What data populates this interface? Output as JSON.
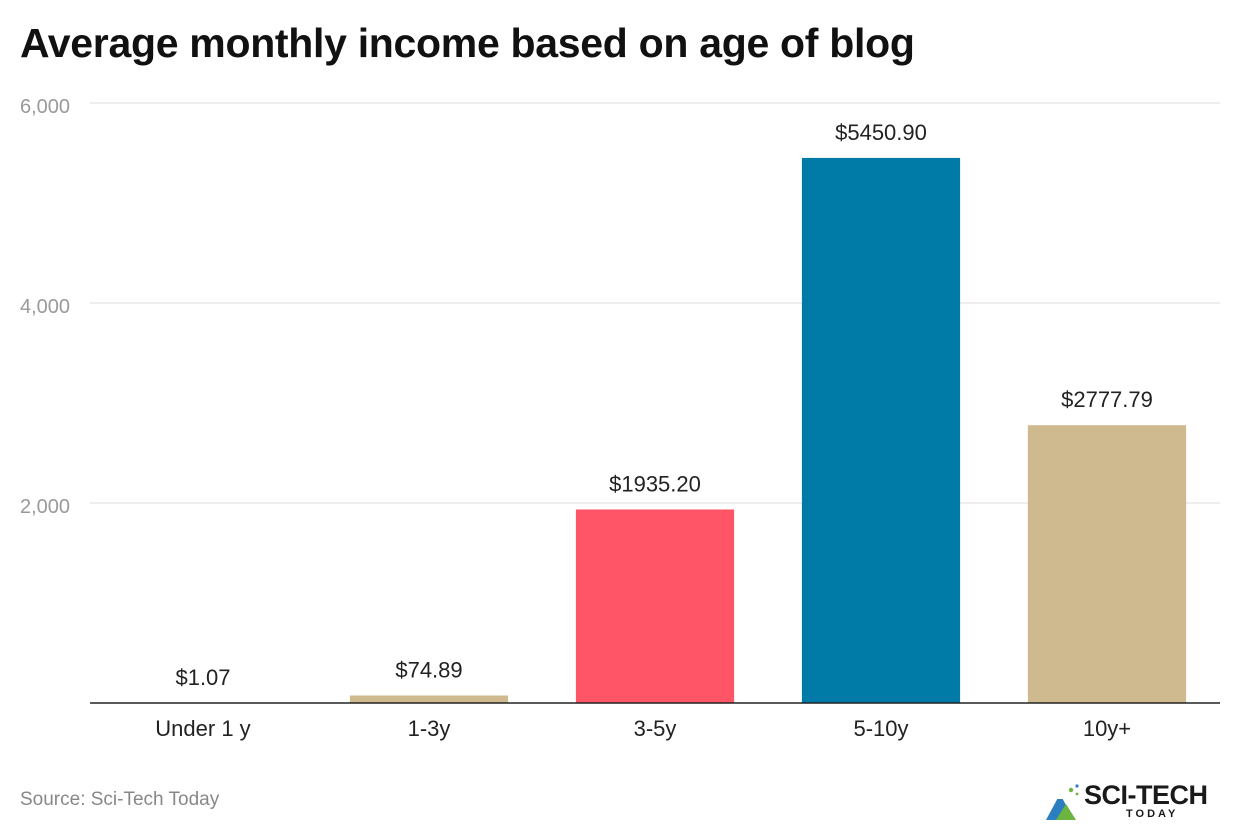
{
  "chart_data": {
    "type": "bar",
    "title": "Average monthly income based on age of blog",
    "categories": [
      "Under 1 y",
      "1-3y",
      "3-5y",
      "5-10y",
      "10y+"
    ],
    "values": [
      1.07,
      74.89,
      1935.2,
      5450.9,
      2777.79
    ],
    "data_labels": [
      "$1.07",
      "$74.89",
      "$1935.20",
      "$5450.90",
      "$2777.79"
    ],
    "colors": [
      "#cfb98f",
      "#cfb98f",
      "#ff5566",
      "#007ba7",
      "#cfb98f"
    ],
    "ylim": [
      0,
      6000
    ],
    "yticks": [
      2000,
      4000,
      6000
    ],
    "ytick_labels": [
      "2,000",
      "4,000",
      "6,000"
    ],
    "grid": true,
    "legend": "none"
  },
  "footer": {
    "source": "Source: Sci-Tech Today"
  },
  "logo": {
    "main": "SCI-TECH",
    "sub": "TODAY"
  }
}
